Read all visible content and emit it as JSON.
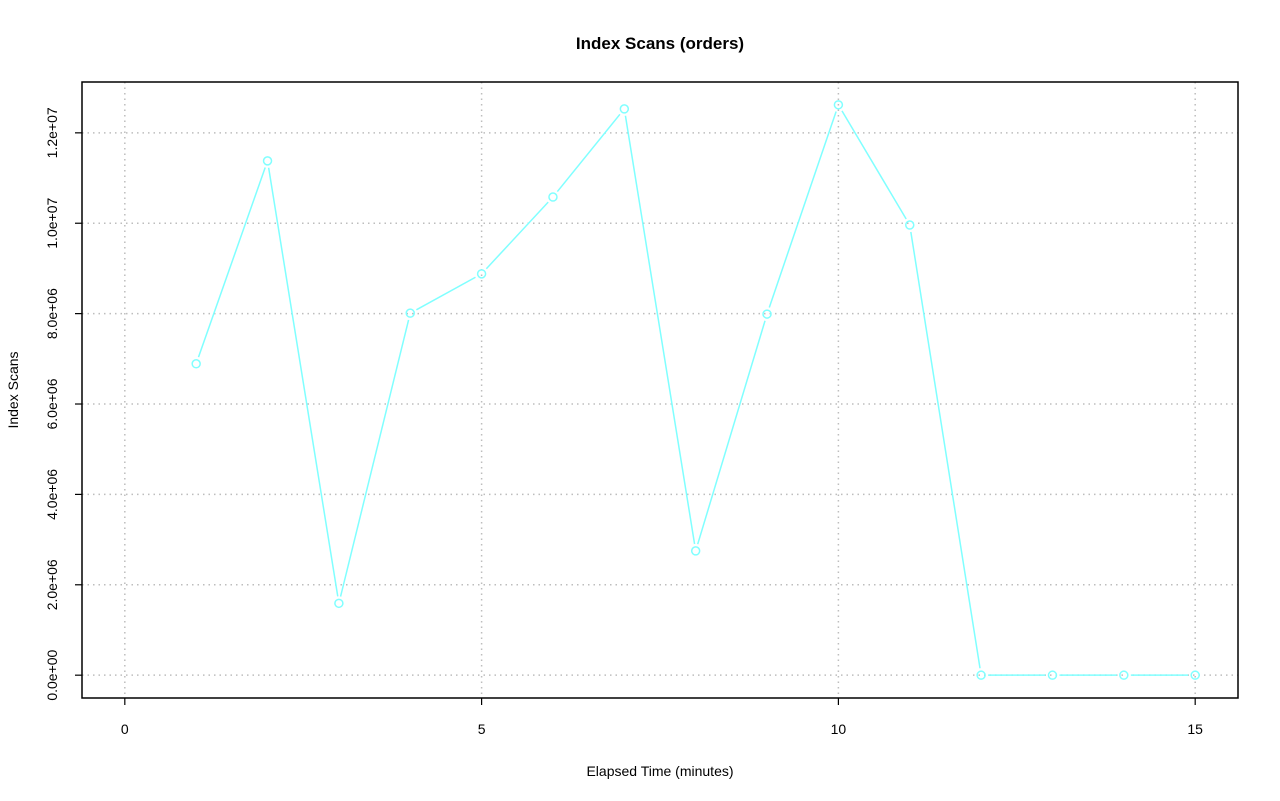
{
  "chart_data": {
    "type": "line",
    "title": "Index Scans (orders)",
    "xlabel": "Elapsed Time (minutes)",
    "ylabel": "Index Scans",
    "xlim": [
      -0.6,
      15.6
    ],
    "ylim": [
      -505000,
      13125000
    ],
    "xticks": [
      0,
      5,
      10,
      15
    ],
    "xtick_labels": [
      "0",
      "5",
      "10",
      "15"
    ],
    "yticks": [
      0,
      2000000,
      4000000,
      6000000,
      8000000,
      10000000,
      12000000
    ],
    "ytick_labels": [
      "0.0e+00",
      "2.0e+06",
      "4.0e+06",
      "6.0e+06",
      "8.0e+06",
      "1.0e+07",
      "1.2e+07"
    ],
    "grid": true,
    "series": [
      {
        "color": "#80ffff",
        "x": [
          1,
          2,
          3,
          4,
          5,
          6,
          7,
          8,
          9,
          10,
          11,
          12,
          13,
          14,
          15
        ],
        "values": [
          6890000,
          11380000,
          1590000,
          8010000,
          8880000,
          10580000,
          12530000,
          2750000,
          7990000,
          12620000,
          9960000,
          0,
          0,
          0,
          0
        ]
      }
    ]
  }
}
